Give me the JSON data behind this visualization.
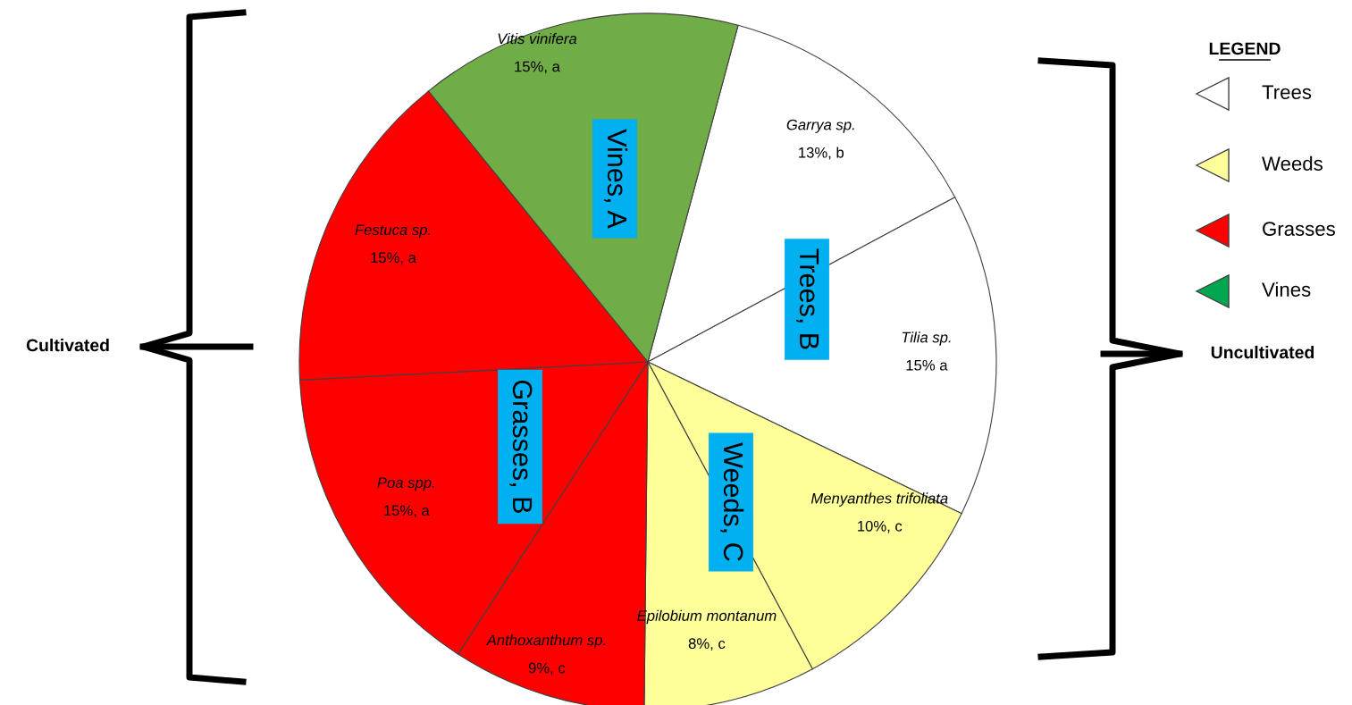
{
  "chart_data": {
    "type": "pie",
    "categories": [
      "Garrya sp.",
      "Tilia sp.",
      "Menyanthes trifoliata",
      "Epilobium montanum",
      "Anthoxanthum sp.",
      "Poa spp.",
      "Festuca sp.",
      "Vitis vinifera"
    ],
    "values": [
      13,
      15,
      10,
      8,
      9,
      15,
      15,
      15
    ],
    "value_labels": [
      "13%, b",
      "15% a",
      "10%, c",
      "8%, c",
      "9%, c",
      "15%, a",
      "15%, a",
      "15%, a"
    ],
    "colors": [
      "#ffffff",
      "#ffffff",
      "#ffff99",
      "#ffff99",
      "#ff0000",
      "#ff0000",
      "#ff0000",
      "#70ad47"
    ],
    "annotations": [
      "Cultivated",
      "Uncultivated",
      "Vines, A",
      "Trees, B",
      "Grasses, B",
      "Weeds, C",
      "LEGEND",
      "Trees",
      "Weeds",
      "Grasses",
      "Vines"
    ]
  }
}
